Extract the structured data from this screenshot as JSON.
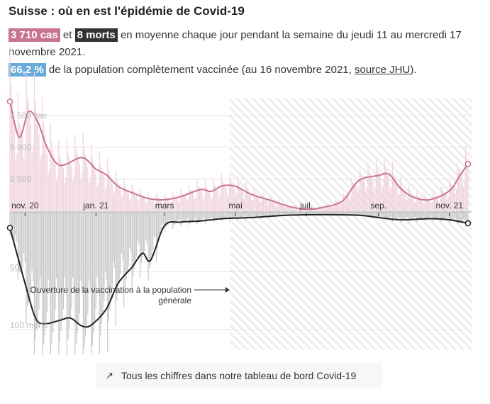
{
  "header": {
    "title": "Suisse : où en est l'épidémie de Covid-19",
    "cases_badge": "3 710 cas",
    "and": "et",
    "deaths_badge": "8 morts",
    "summary_rest": " en moyenne chaque jour pendant la semaine du jeudi 11 au mercredi 17 novembre 2021.",
    "vacc_badge": "66,2 %",
    "vacc_text": " de la population complètement vaccinée (au 16 novembre 2021, ",
    "source_link": "source JHU",
    "vacc_end": ")."
  },
  "colors": {
    "cases": "#c9748f",
    "cases_bar": "#f0d3dc",
    "deaths": "#222",
    "deaths_bar": "#c8c8c8",
    "vacc": "#6aaad8"
  },
  "chart_data": {
    "type": "bar+line",
    "x_ticks": [
      {
        "date": "2020-11-01",
        "label": "nov. 20"
      },
      {
        "date": "2021-01-01",
        "label": "jan. 21"
      },
      {
        "date": "2021-03-01",
        "label": "mars"
      },
      {
        "date": "2021-05-01",
        "label": "mai"
      },
      {
        "date": "2021-07-01",
        "label": "juil."
      },
      {
        "date": "2021-09-01",
        "label": "sep."
      },
      {
        "date": "2021-11-01",
        "label": "nov. 21"
      }
    ],
    "x_range": [
      "2020-10-19",
      "2021-11-17"
    ],
    "cases_axis": {
      "ticks": [
        {
          "v": 2500,
          "label": "2 500"
        },
        {
          "v": 5000,
          "label": "5 000"
        },
        {
          "v": 7500,
          "label": "7 500 cas"
        }
      ]
    },
    "deaths_axis": {
      "ticks": [
        {
          "v": 50,
          "label": "50"
        },
        {
          "v": 100,
          "label": "100 morts"
        }
      ]
    },
    "cases_avg": [
      [
        "2020-10-19",
        8600
      ],
      [
        "2020-10-27",
        5800
      ],
      [
        "2020-11-04",
        7800
      ],
      [
        "2020-11-12",
        7000
      ],
      [
        "2020-11-20",
        5000
      ],
      [
        "2020-12-01",
        3600
      ],
      [
        "2020-12-20",
        4200
      ],
      [
        "2021-01-01",
        3300
      ],
      [
        "2021-01-10",
        2850
      ],
      [
        "2021-01-20",
        1950
      ],
      [
        "2021-02-01",
        1450
      ],
      [
        "2021-02-15",
        1000
      ],
      [
        "2021-03-01",
        900
      ],
      [
        "2021-03-15",
        1150
      ],
      [
        "2021-04-01",
        1700
      ],
      [
        "2021-04-10",
        1550
      ],
      [
        "2021-04-20",
        2000
      ],
      [
        "2021-05-01",
        1950
      ],
      [
        "2021-05-15",
        1300
      ],
      [
        "2021-06-01",
        830
      ],
      [
        "2021-06-15",
        400
      ],
      [
        "2021-07-01",
        150
      ],
      [
        "2021-07-15",
        300
      ],
      [
        "2021-08-01",
        800
      ],
      [
        "2021-08-15",
        2400
      ],
      [
        "2021-09-01",
        2800
      ],
      [
        "2021-09-10",
        2900
      ],
      [
        "2021-09-20",
        1800
      ],
      [
        "2021-10-01",
        1100
      ],
      [
        "2021-10-15",
        900
      ],
      [
        "2021-11-01",
        1600
      ],
      [
        "2021-11-10",
        2800
      ],
      [
        "2021-11-17",
        3710
      ]
    ],
    "deaths_avg": [
      [
        "2020-10-19",
        12
      ],
      [
        "2020-11-01",
        60
      ],
      [
        "2020-11-10",
        90
      ],
      [
        "2020-11-18",
        95
      ],
      [
        "2020-12-01",
        92
      ],
      [
        "2020-12-10",
        90
      ],
      [
        "2020-12-20",
        97
      ],
      [
        "2020-12-28",
        96
      ],
      [
        "2021-01-10",
        82
      ],
      [
        "2021-01-20",
        60
      ],
      [
        "2021-02-01",
        46
      ],
      [
        "2021-02-10",
        34
      ],
      [
        "2021-02-17",
        40
      ],
      [
        "2021-03-01",
        10
      ],
      [
        "2021-03-15",
        7
      ],
      [
        "2021-04-01",
        6
      ],
      [
        "2021-04-20",
        4
      ],
      [
        "2021-05-15",
        3
      ],
      [
        "2021-06-15",
        1
      ],
      [
        "2021-07-15",
        0.5
      ],
      [
        "2021-08-15",
        1
      ],
      [
        "2021-09-01",
        3
      ],
      [
        "2021-09-20",
        5
      ],
      [
        "2021-10-15",
        4
      ],
      [
        "2021-11-01",
        5
      ],
      [
        "2021-11-17",
        8
      ]
    ],
    "hatched_from": "2021-04-26",
    "annotation": {
      "date": "2021-04-26",
      "line1": "Ouverture de la vaccination à la population",
      "line2": "générale"
    }
  },
  "footer": {
    "link_label": "Tous les chiffres dans notre tableau de bord Covid-19",
    "icon": "external-link-icon"
  }
}
